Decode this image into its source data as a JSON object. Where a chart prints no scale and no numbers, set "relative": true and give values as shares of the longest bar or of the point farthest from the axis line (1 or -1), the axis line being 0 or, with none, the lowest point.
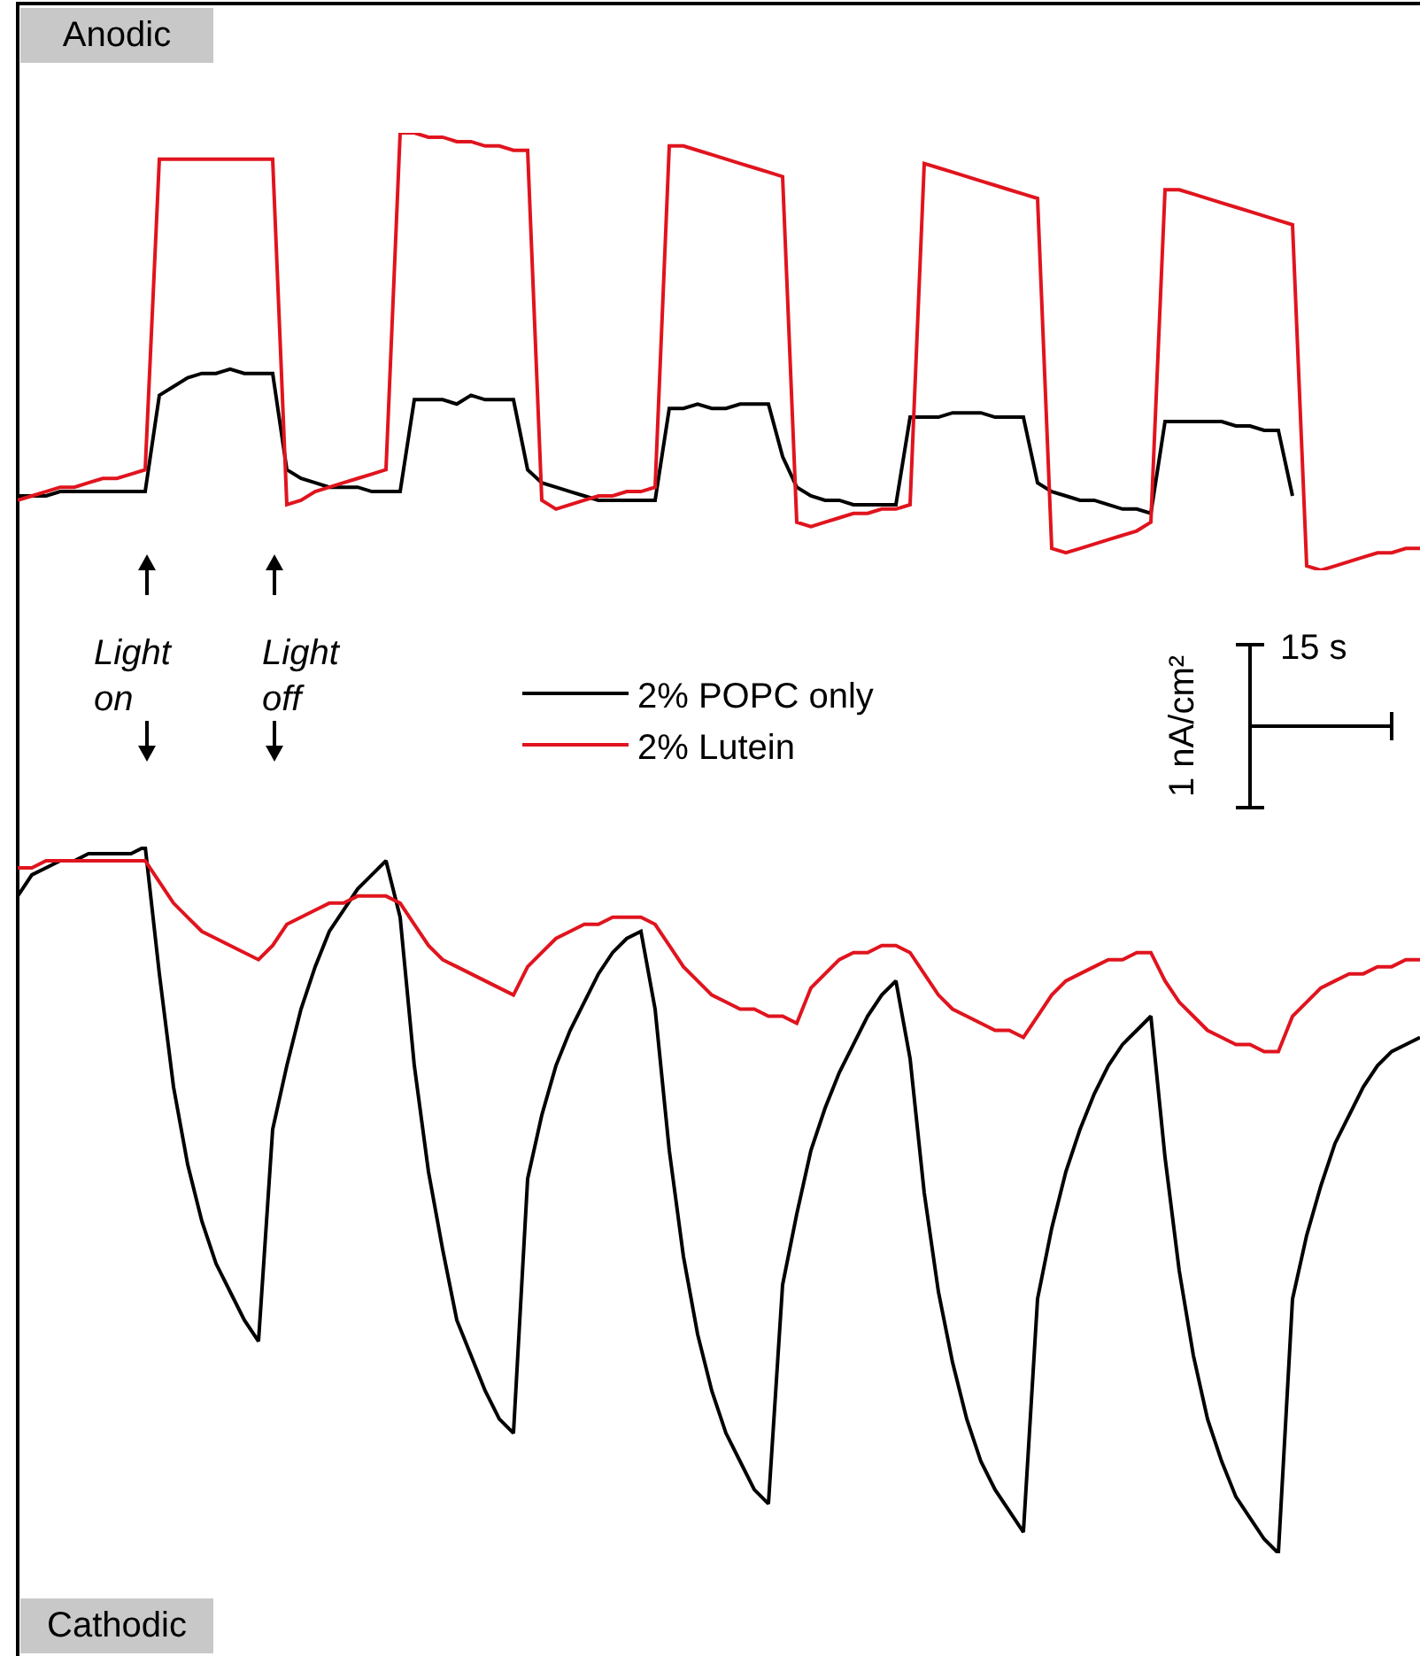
{
  "chart_data": [
    {
      "type": "line",
      "relative": true,
      "tick_labels": false,
      "legend": "bottom",
      "annotations": [
        "Anodic",
        "Light on",
        "Light off",
        "1 nA/cm²",
        "15 s"
      ],
      "categories": [
        null,
        null,
        null,
        null,
        null,
        null,
        null,
        null,
        null,
        null,
        null,
        null,
        null,
        null,
        null,
        null,
        null,
        null,
        null,
        null,
        null,
        null,
        null,
        null,
        null,
        null,
        null,
        null,
        null,
        null,
        null,
        null,
        null,
        null,
        null,
        null,
        null,
        null,
        null,
        null,
        null,
        null,
        null,
        null,
        null,
        null,
        null,
        null,
        null,
        null,
        null,
        null,
        null,
        null,
        null,
        null,
        null,
        null,
        null,
        null,
        null,
        null,
        null,
        null,
        null,
        null,
        null,
        null,
        null,
        null,
        null,
        null,
        null,
        null,
        null,
        null,
        null,
        null,
        null,
        null,
        null,
        null,
        null,
        null,
        null,
        null,
        null,
        null,
        null,
        null,
        null,
        null,
        null,
        null,
        null,
        null,
        null,
        null,
        null,
        null
      ],
      "series": [
        {
          "name": "2% POPC only",
          "color": "#000000",
          "values": [
            0.17,
            0.17,
            0.17,
            0.18,
            0.18,
            0.18,
            0.18,
            0.18,
            0.18,
            0.18,
            0.4,
            0.42,
            0.44,
            0.45,
            0.45,
            0.46,
            0.45,
            0.45,
            0.45,
            0.23,
            0.21,
            0.2,
            0.19,
            0.19,
            0.19,
            0.18,
            0.18,
            0.18,
            0.39,
            0.39,
            0.39,
            0.38,
            0.4,
            0.39,
            0.39,
            0.39,
            0.23,
            0.2,
            0.19,
            0.18,
            0.17,
            0.16,
            0.16,
            0.16,
            0.16,
            0.16,
            0.37,
            0.37,
            0.38,
            0.37,
            0.37,
            0.38,
            0.38,
            0.38,
            0.26,
            0.19,
            0.17,
            0.16,
            0.16,
            0.15,
            0.15,
            0.15,
            0.15,
            0.35,
            0.35,
            0.35,
            0.36,
            0.36,
            0.36,
            0.35,
            0.35,
            0.35,
            0.2,
            0.18,
            0.17,
            0.16,
            0.16,
            0.15,
            0.14,
            0.14,
            0.13,
            0.34,
            0.34,
            0.34,
            0.34,
            0.34,
            0.33,
            0.33,
            0.32,
            0.32,
            0.17,
            null,
            null,
            null,
            null,
            null,
            null,
            null,
            null,
            null
          ]
        },
        {
          "name": "2% Lutein",
          "color": "#e0141e",
          "values": [
            0.16,
            0.17,
            0.18,
            0.19,
            0.19,
            0.2,
            0.21,
            0.21,
            0.22,
            0.23,
            0.94,
            0.94,
            0.94,
            0.94,
            0.94,
            0.94,
            0.94,
            0.94,
            0.94,
            0.15,
            0.16,
            0.18,
            0.19,
            0.2,
            0.21,
            0.22,
            0.23,
            1.0,
            1.0,
            0.99,
            0.99,
            0.98,
            0.98,
            0.97,
            0.97,
            0.96,
            0.96,
            0.16,
            0.14,
            0.15,
            0.16,
            0.17,
            0.17,
            0.18,
            0.18,
            0.19,
            0.97,
            0.97,
            0.96,
            0.95,
            0.94,
            0.93,
            0.92,
            0.91,
            0.9,
            0.11,
            0.1,
            0.11,
            0.12,
            0.13,
            0.13,
            0.14,
            0.14,
            0.15,
            0.93,
            0.92,
            0.91,
            0.9,
            0.89,
            0.88,
            0.87,
            0.86,
            0.85,
            0.05,
            0.04,
            0.05,
            0.06,
            0.07,
            0.08,
            0.09,
            0.11,
            0.87,
            0.87,
            0.86,
            0.85,
            0.84,
            0.83,
            0.82,
            0.81,
            0.8,
            0.79,
            0.01,
            0.0,
            0.01,
            0.02,
            0.03,
            0.04,
            0.04,
            0.05,
            0.05
          ]
        }
      ]
    },
    {
      "type": "line",
      "relative": true,
      "tick_labels": false,
      "annotations": [
        "Cathodic"
      ],
      "categories": [
        null,
        null,
        null,
        null,
        null,
        null,
        null,
        null,
        null,
        null,
        null,
        null,
        null,
        null,
        null,
        null,
        null,
        null,
        null,
        null,
        null,
        null,
        null,
        null,
        null,
        null,
        null,
        null,
        null,
        null,
        null,
        null,
        null,
        null,
        null,
        null,
        null,
        null,
        null,
        null,
        null,
        null,
        null,
        null,
        null,
        null,
        null,
        null,
        null,
        null,
        null,
        null,
        null,
        null,
        null,
        null,
        null,
        null,
        null,
        null,
        null,
        null,
        null,
        null,
        null,
        null,
        null,
        null,
        null,
        null,
        null,
        null,
        null,
        null,
        null,
        null,
        null,
        null,
        null,
        null,
        null,
        null,
        null,
        null,
        null,
        null,
        null,
        null,
        null,
        null,
        null,
        null,
        null,
        null,
        null,
        null,
        null,
        null,
        null,
        null
      ],
      "series": [
        {
          "color": "#000000",
          "values": [
            0.93,
            0.96,
            0.97,
            0.98,
            0.98,
            0.99,
            0.99,
            0.99,
            0.99,
            1.0,
            0.82,
            0.66,
            0.55,
            0.47,
            0.41,
            0.37,
            0.33,
            0.3,
            0.6,
            0.69,
            0.77,
            0.83,
            0.88,
            0.91,
            0.94,
            0.96,
            0.98,
            0.9,
            0.69,
            0.54,
            0.43,
            0.33,
            0.28,
            0.23,
            0.19,
            0.17,
            0.53,
            0.62,
            0.69,
            0.74,
            0.78,
            0.82,
            0.85,
            0.87,
            0.88,
            0.77,
            0.57,
            0.42,
            0.31,
            0.23,
            0.17,
            0.13,
            0.09,
            0.07,
            0.38,
            0.48,
            0.57,
            0.63,
            0.68,
            0.72,
            0.76,
            0.79,
            0.81,
            0.7,
            0.51,
            0.37,
            0.27,
            0.19,
            0.13,
            0.09,
            0.06,
            0.03,
            0.36,
            0.46,
            0.54,
            0.6,
            0.65,
            0.69,
            0.72,
            0.74,
            0.76,
            0.56,
            0.4,
            0.28,
            0.19,
            0.13,
            0.08,
            0.05,
            0.02,
            0.0,
            0.36,
            0.45,
            0.52,
            0.58,
            0.62,
            0.66,
            0.69,
            0.71,
            0.72,
            0.73
          ]
        },
        {
          "color": "#e0141e",
          "values": [
            0.97,
            0.97,
            0.98,
            0.98,
            0.98,
            0.98,
            0.98,
            0.98,
            0.98,
            0.98,
            0.95,
            0.92,
            0.9,
            0.88,
            0.87,
            0.86,
            0.85,
            0.84,
            0.86,
            0.89,
            0.9,
            0.91,
            0.92,
            0.92,
            0.93,
            0.93,
            0.93,
            0.92,
            0.89,
            0.86,
            0.84,
            0.83,
            0.82,
            0.81,
            0.8,
            0.79,
            0.83,
            0.85,
            0.87,
            0.88,
            0.89,
            0.89,
            0.9,
            0.9,
            0.9,
            0.89,
            0.86,
            0.83,
            0.81,
            0.79,
            0.78,
            0.77,
            0.77,
            0.76,
            0.76,
            0.75,
            0.8,
            0.82,
            0.84,
            0.85,
            0.85,
            0.86,
            0.86,
            0.85,
            0.82,
            0.79,
            0.77,
            0.76,
            0.75,
            0.74,
            0.74,
            0.73,
            0.76,
            0.79,
            0.81,
            0.82,
            0.83,
            0.84,
            0.84,
            0.85,
            0.85,
            0.81,
            0.78,
            0.76,
            0.74,
            0.73,
            0.72,
            0.72,
            0.71,
            0.71,
            0.76,
            0.78,
            0.8,
            0.81,
            0.82,
            0.82,
            0.83,
            0.83,
            0.84,
            0.84
          ]
        }
      ]
    }
  ]
}
